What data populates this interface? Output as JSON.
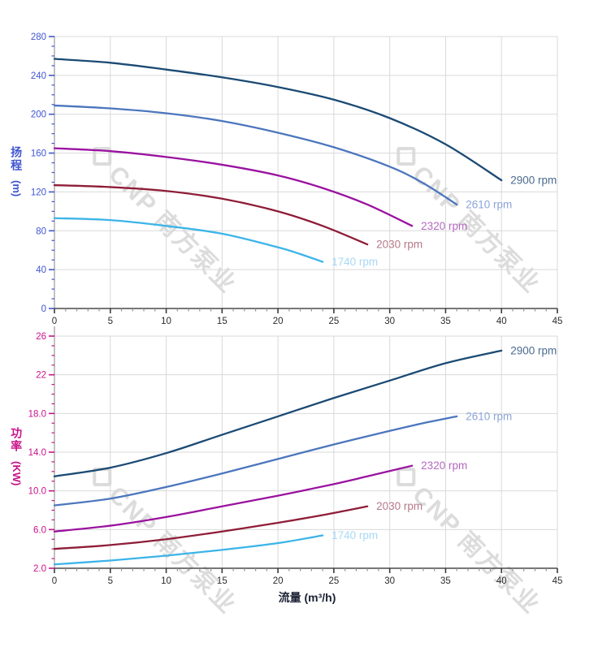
{
  "page": {
    "background": "#ffffff"
  },
  "watermark": {
    "text": "CNP 南方泵业",
    "logo_icon": "cnp-diamond-logo",
    "color": "rgba(178,178,178,0.45)",
    "tiles": 4
  },
  "style": {
    "grid_color": "#d9d9d9",
    "y_axis_line_color": "#9a9a9a",
    "x_axis_line_color": "#4a4a4a",
    "x_tick_color": "#3c3c3c",
    "x_minor_tick_color": "#8f8f8f",
    "xlabel_color": "#1c2133",
    "head_axis_color": "#4055d0",
    "power_axis_color": "#c8138a"
  },
  "chart_data": [
    {
      "id": "head",
      "type": "line",
      "title": "",
      "ylabel": "扬程",
      "ylabel_unit": "(m)",
      "xlabel": "",
      "grid": true,
      "legend_position": "line-end-labels",
      "x_axis": {
        "min": 0,
        "max": 45,
        "major_step": 5,
        "minor_step": 1,
        "tick_labels": [
          "0",
          "5",
          "10",
          "15",
          "20",
          "25",
          "30",
          "35",
          "40",
          "45"
        ],
        "label_color": "#2b2b2b"
      },
      "y_axis": {
        "min": 0,
        "max": 280,
        "major_step": 40,
        "minor_step": 10,
        "tick_labels": [
          "0",
          "40",
          "80",
          "120",
          "160",
          "200",
          "240",
          "280"
        ],
        "label_color": "#4055d0"
      },
      "series": [
        {
          "name": "2900 rpm",
          "color": "#1b4a74",
          "label_color": "#4b6b90",
          "points": [
            [
              0,
              257
            ],
            [
              5,
              253
            ],
            [
              10,
              246
            ],
            [
              15,
              238
            ],
            [
              20,
              228
            ],
            [
              25,
              215
            ],
            [
              30,
              196
            ],
            [
              35,
              169
            ],
            [
              40,
              132
            ]
          ]
        },
        {
          "name": "2610 rpm",
          "color": "#4c76bd",
          "label_color": "#8ba4da",
          "points": [
            [
              0,
              209
            ],
            [
              5,
              206
            ],
            [
              10,
              201
            ],
            [
              15,
              193
            ],
            [
              20,
              181
            ],
            [
              25,
              166
            ],
            [
              30,
              146
            ],
            [
              33,
              129
            ],
            [
              36,
              107
            ]
          ]
        },
        {
          "name": "2320 rpm",
          "color": "#9a12a0",
          "label_color": "#b469c0",
          "points": [
            [
              0,
              165
            ],
            [
              5,
              162
            ],
            [
              10,
              156
            ],
            [
              15,
              148
            ],
            [
              20,
              137
            ],
            [
              24,
              124
            ],
            [
              28,
              107
            ],
            [
              32,
              85
            ]
          ]
        },
        {
          "name": "2030 rpm",
          "color": "#8f1d38",
          "label_color": "#b4798a",
          "points": [
            [
              0,
              127
            ],
            [
              5,
              125
            ],
            [
              10,
              121
            ],
            [
              15,
              113
            ],
            [
              20,
              100
            ],
            [
              24,
              85
            ],
            [
              28,
              66
            ]
          ]
        },
        {
          "name": "1740 rpm",
          "color": "#3cb4e8",
          "label_color": "#a8d9f5",
          "points": [
            [
              0,
              93
            ],
            [
              5,
              91
            ],
            [
              10,
              85
            ],
            [
              15,
              77
            ],
            [
              20,
              63
            ],
            [
              22,
              56
            ],
            [
              24,
              48
            ]
          ]
        }
      ]
    },
    {
      "id": "power",
      "type": "line",
      "title": "",
      "ylabel": "功率",
      "ylabel_unit": "(KW)",
      "xlabel": "流量 (m³/h)",
      "grid": true,
      "legend_position": "line-end-labels",
      "x_axis": {
        "min": 0,
        "max": 45,
        "major_step": 5,
        "minor_step": 1,
        "tick_labels": [
          "0",
          "5",
          "10",
          "15",
          "20",
          "25",
          "30",
          "35",
          "40",
          "45"
        ],
        "label_color": "#2b2b2b"
      },
      "y_axis": {
        "min": 2,
        "max": 26,
        "major_step": 4,
        "minor_step": 1,
        "tick_labels": [
          "2.0",
          "6.0",
          "10.0",
          "14.0",
          "18.0",
          "22",
          "26"
        ],
        "label_color": "#c8138a"
      },
      "series": [
        {
          "name": "2900 rpm",
          "color": "#1b4a74",
          "label_color": "#4b6b90",
          "points": [
            [
              0,
              11.5
            ],
            [
              5,
              12.4
            ],
            [
              10,
              13.9
            ],
            [
              15,
              15.8
            ],
            [
              20,
              17.7
            ],
            [
              25,
              19.6
            ],
            [
              30,
              21.4
            ],
            [
              35,
              23.2
            ],
            [
              40,
              24.5
            ]
          ]
        },
        {
          "name": "2610 rpm",
          "color": "#4c76bd",
          "label_color": "#8ba4da",
          "points": [
            [
              0,
              8.5
            ],
            [
              5,
              9.2
            ],
            [
              10,
              10.4
            ],
            [
              15,
              11.8
            ],
            [
              20,
              13.3
            ],
            [
              25,
              14.8
            ],
            [
              30,
              16.2
            ],
            [
              33,
              17.0
            ],
            [
              36,
              17.7
            ]
          ]
        },
        {
          "name": "2320 rpm",
          "color": "#9a12a0",
          "label_color": "#b469c0",
          "points": [
            [
              0,
              5.8
            ],
            [
              5,
              6.4
            ],
            [
              10,
              7.3
            ],
            [
              15,
              8.4
            ],
            [
              20,
              9.5
            ],
            [
              25,
              10.7
            ],
            [
              28,
              11.5
            ],
            [
              32,
              12.6
            ]
          ]
        },
        {
          "name": "2030 rpm",
          "color": "#8f1d38",
          "label_color": "#b4798a",
          "points": [
            [
              0,
              4.0
            ],
            [
              5,
              4.4
            ],
            [
              10,
              5.0
            ],
            [
              15,
              5.8
            ],
            [
              20,
              6.7
            ],
            [
              24,
              7.5
            ],
            [
              28,
              8.4
            ]
          ]
        },
        {
          "name": "1740 rpm",
          "color": "#3cb4e8",
          "label_color": "#a8d9f5",
          "points": [
            [
              0,
              2.4
            ],
            [
              5,
              2.8
            ],
            [
              10,
              3.3
            ],
            [
              15,
              3.9
            ],
            [
              20,
              4.6
            ],
            [
              24,
              5.4
            ]
          ]
        }
      ]
    }
  ]
}
